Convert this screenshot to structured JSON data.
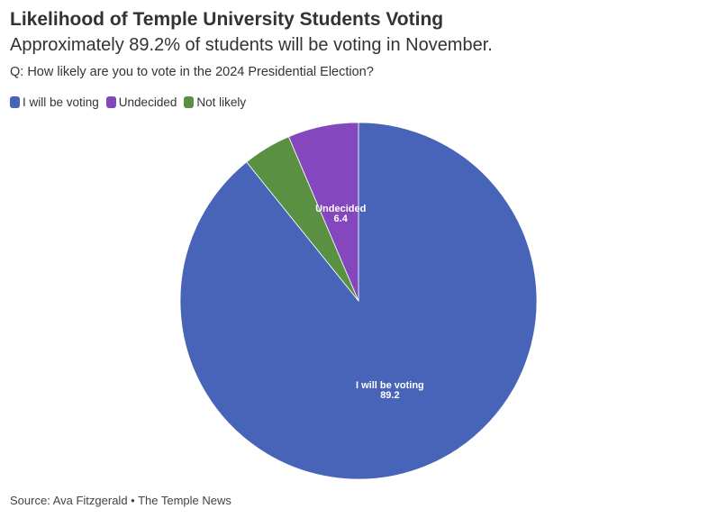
{
  "header": {
    "title": "Likelihood of Temple University Students Voting",
    "subtitle": "Approximately 89.2% of students will be voting in November.",
    "question": "Q: How likely are you to vote in the 2024 Presidential Election?"
  },
  "colors": {
    "voting": "#4864b8",
    "undecided": "#8447bd",
    "not_likely": "#5a9042"
  },
  "chart_data": {
    "type": "pie",
    "title": "Likelihood of Temple University Students Voting",
    "legend_position": "top-left",
    "slices": [
      {
        "label": "I will be voting",
        "value": 89.2,
        "color": "#4864b8",
        "show_label": true
      },
      {
        "label": "Not likely",
        "value": 4.4,
        "color": "#5a9042",
        "show_label": false
      },
      {
        "label": "Undecided",
        "value": 6.4,
        "color": "#8447bd",
        "show_label": true
      }
    ],
    "legend": [
      {
        "label": "I will be voting",
        "color": "#4864b8"
      },
      {
        "label": "Undecided",
        "color": "#8447bd"
      },
      {
        "label": "Not likely",
        "color": "#5a9042"
      }
    ]
  },
  "footer": {
    "source": "Source: Ava Fitzgerald • The Temple News"
  }
}
